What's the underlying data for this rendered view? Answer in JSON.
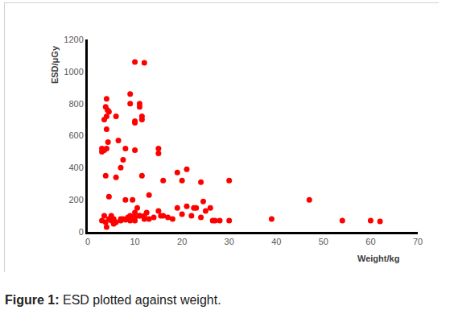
{
  "chart_data": {
    "type": "scatter",
    "x_label": "Weight/kg",
    "y_label": "ESD/μGy",
    "caption_label": "Figure 1:",
    "caption": "ESD plotted against weight.",
    "color": "#ff0000",
    "marker": "circle",
    "grid": false,
    "xlim": [
      0,
      70
    ],
    "xticks": [
      0,
      10,
      20,
      30,
      40,
      50,
      60,
      70
    ],
    "ylim": [
      0,
      1200
    ],
    "yticks": [
      0,
      200,
      400,
      600,
      800,
      1000,
      1200
    ],
    "x": [
      3,
      3,
      3.5,
      4,
      3.5,
      4,
      3.8,
      4,
      4.2,
      4.5,
      4,
      4.3,
      3.8,
      4.5,
      3.5,
      3.8,
      4,
      4.5,
      5,
      5,
      5.5,
      6,
      6,
      6.5,
      6,
      7,
      7,
      7.5,
      7.5,
      8,
      8,
      8.5,
      8.5,
      9,
      9,
      9,
      9.5,
      9.5,
      10,
      10,
      10,
      10,
      10,
      10,
      10.5,
      11,
      11,
      11,
      11.5,
      11.5,
      11.5,
      12,
      12,
      12.5,
      13,
      13,
      14,
      15,
      15,
      15,
      15.5,
      16,
      16,
      17,
      18,
      19,
      19,
      20,
      20,
      21,
      21,
      22,
      22.5,
      23,
      24,
      24,
      24.5,
      25,
      26,
      26.5,
      27,
      28,
      30,
      30,
      39,
      47,
      54,
      60,
      62,
      3,
      5.5,
      7,
      9,
      8,
      10,
      11,
      12
    ],
    "y": [
      500,
      520,
      510,
      520,
      700,
      720,
      780,
      830,
      760,
      750,
      640,
      560,
      350,
      220,
      100,
      60,
      30,
      80,
      100,
      70,
      80,
      60,
      720,
      570,
      340,
      400,
      80,
      450,
      80,
      200,
      520,
      90,
      80,
      800,
      860,
      100,
      90,
      200,
      690,
      510,
      680,
      1060,
      120,
      90,
      150,
      800,
      780,
      100,
      700,
      720,
      350,
      1055,
      80,
      120,
      230,
      80,
      90,
      520,
      490,
      130,
      100,
      320,
      100,
      90,
      80,
      370,
      150,
      320,
      110,
      390,
      160,
      100,
      150,
      150,
      310,
      90,
      190,
      130,
      150,
      70,
      70,
      70,
      320,
      70,
      80,
      200,
      70,
      70,
      65,
      70,
      50,
      70,
      70,
      75,
      70,
      100,
      100
    ]
  }
}
